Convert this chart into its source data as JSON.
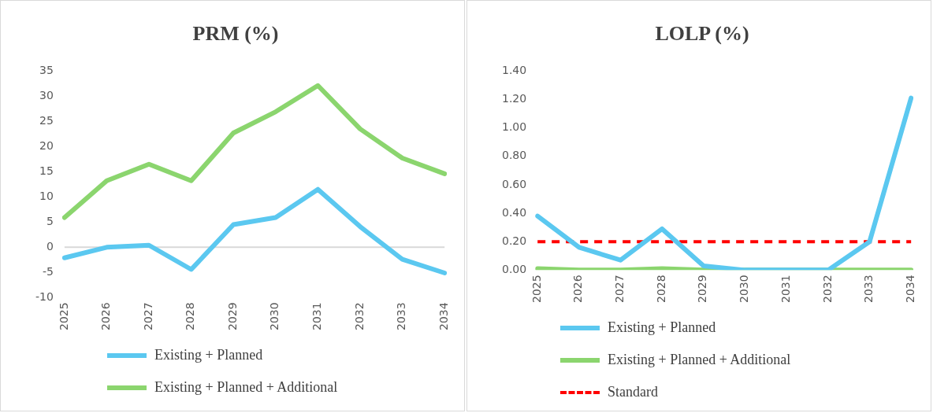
{
  "chart_data": [
    {
      "type": "line",
      "title": "PRM (%)",
      "categories": [
        "2025",
        "2026",
        "2027",
        "2028",
        "2029",
        "2030",
        "2031",
        "2032",
        "2033",
        "2034"
      ],
      "series": [
        {
          "name": "Existing + Planned",
          "color": "#5bc8f0",
          "values": [
            -2.1,
            0,
            0.4,
            -4.4,
            4.5,
            5.9,
            11.5,
            4.1,
            -2.4,
            -5.1
          ]
        },
        {
          "name": "Existing + Planned + Additional",
          "color": "#8bd56e",
          "values": [
            5.9,
            13.2,
            16.5,
            13.2,
            22.7,
            26.9,
            32.1,
            23.5,
            17.7,
            14.6
          ]
        }
      ],
      "ylim": [
        -10,
        35
      ],
      "yticks": [
        -10,
        -5,
        0,
        5,
        10,
        15,
        20,
        25,
        30,
        35
      ],
      "ref_lines": [
        {
          "axis": "y",
          "value": 0,
          "color": "#d9d9d9"
        }
      ],
      "grid": false,
      "legend": "bottom",
      "marker": "none",
      "line_style": "solid"
    },
    {
      "type": "line",
      "title": "LOLP (%)",
      "categories": [
        "2025",
        "2026",
        "2027",
        "2028",
        "2029",
        "2030",
        "2031",
        "2032",
        "2033",
        "2034"
      ],
      "series": [
        {
          "name": "Existing + Planned",
          "color": "#5bc8f0",
          "values": [
            0.38,
            0.16,
            0.07,
            0.29,
            0.03,
            0,
            0,
            0,
            0.2,
            1.21
          ]
        },
        {
          "name": "Existing + Planned + Additional",
          "color": "#8bd56e",
          "values": [
            0.01,
            0,
            0,
            0.01,
            0,
            0,
            0,
            0,
            0,
            0
          ]
        },
        {
          "name": "Standard",
          "color": "#ff0000",
          "line_style": "dashed",
          "values": [
            0.2,
            0.2,
            0.2,
            0.2,
            0.2,
            0.2,
            0.2,
            0.2,
            0.2,
            0.2
          ]
        }
      ],
      "ylim": [
        0,
        1.4
      ],
      "yticks": [
        {
          "value": 0,
          "label": "0.00"
        },
        {
          "value": 0.2,
          "label": "0.20"
        },
        {
          "value": 0.4,
          "label": "0.40"
        },
        {
          "value": 0.6,
          "label": "0.60"
        },
        {
          "value": 0.8,
          "label": "0.80"
        },
        {
          "value": 1,
          "label": "1.00"
        },
        {
          "value": 1.2,
          "label": "1.20"
        },
        {
          "value": 1.4,
          "label": "1.40"
        }
      ],
      "grid": false,
      "legend": "bottom",
      "marker": "none",
      "line_style": "solid"
    }
  ]
}
